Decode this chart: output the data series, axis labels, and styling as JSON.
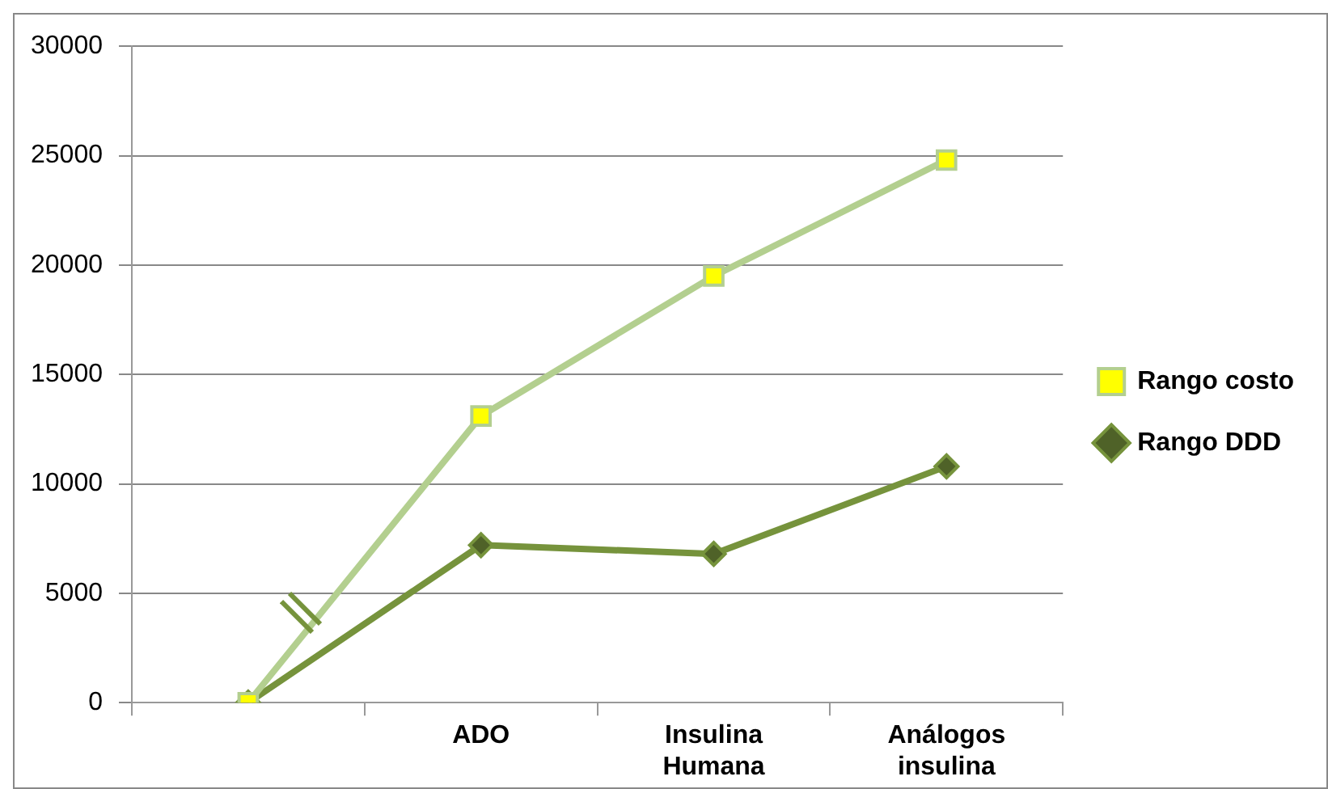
{
  "chart_data": {
    "type": "line",
    "categories": [
      null,
      "ADO",
      "Insulina Humana",
      "Análogos insulina"
    ],
    "series": [
      {
        "name": "Rango costo",
        "color": "#b3cf8f",
        "marker": "square",
        "values": [
          0,
          13100,
          19500,
          24800
        ]
      },
      {
        "name": "Rango DDD",
        "color": "#76933c",
        "marker": "diamond",
        "values": [
          0,
          7200,
          6800,
          10800
        ]
      }
    ],
    "ylim": [
      0,
      30000
    ],
    "yticks": [
      0,
      5000,
      10000,
      15000,
      20000,
      25000,
      30000
    ],
    "grid": "y",
    "legend": "right"
  }
}
